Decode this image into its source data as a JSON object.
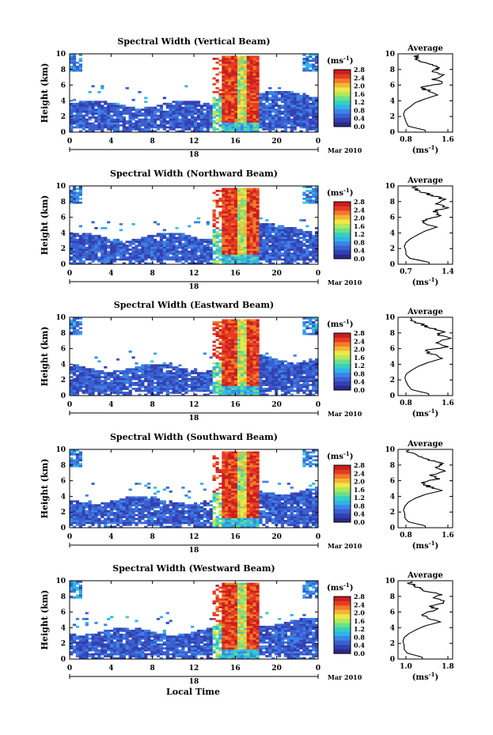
{
  "figure": {
    "xlabel_global": "Local Time",
    "cbar_unit": "(ms",
    "cbar_unit_exp": "-1",
    "cbar_unit_close": ")",
    "avg_title": "Average",
    "date_label": "Mar 2010",
    "day_label": "18",
    "colors": {
      "background": "#ffffff",
      "colormap": [
        "#2b2a8a",
        "#3340b0",
        "#3a5fd0",
        "#3b85e6",
        "#30b3e8",
        "#35d0c0",
        "#6be08a",
        "#b4e85a",
        "#eee847",
        "#f4b536",
        "#f27a2a",
        "#e83a22",
        "#c81e1e"
      ]
    }
  },
  "chart_data": [
    {
      "type": "heatmap",
      "title": "Spectral Width (Vertical Beam)",
      "ylabel": "Height (km)",
      "xlim": [
        0,
        24
      ],
      "ylim": [
        0,
        10
      ],
      "xticks": [
        "0",
        "4",
        "8",
        "12",
        "16",
        "20",
        "0"
      ],
      "yticks": [
        "0",
        "2",
        "4",
        "6",
        "8",
        "10"
      ],
      "colorbar": {
        "range": [
          0,
          2.8
        ],
        "ticks": [
          "0.0",
          "0.4",
          "0.8",
          "1.2",
          "1.6",
          "2.0",
          "2.4",
          "2.8"
        ]
      },
      "average_profile": {
        "xlim": [
          0.8,
          1.6
        ],
        "xticks": [
          "0.8",
          "1.6"
        ],
        "xlabel": "(ms-1)",
        "heights_km": [
          0.25,
          0.75,
          1.25,
          1.75,
          2.25,
          2.75,
          3.25,
          3.75,
          4.25,
          4.75,
          5.25,
          5.75,
          6.25,
          6.75,
          7.25,
          7.75,
          8.25,
          8.75,
          9.25,
          9.75
        ],
        "values": [
          1.2,
          0.95,
          0.92,
          0.9,
          0.88,
          0.9,
          0.98,
          1.05,
          1.2,
          1.38,
          1.25,
          1.1,
          1.45,
          1.32,
          1.5,
          1.3,
          1.42,
          1.2,
          1.1,
          1.05
        ]
      }
    },
    {
      "type": "heatmap",
      "title": "Spectral Width (Northward Beam)",
      "ylabel": "Height (km)",
      "xlim": [
        0,
        24
      ],
      "ylim": [
        0,
        10
      ],
      "xticks": [
        "0",
        "4",
        "8",
        "12",
        "16",
        "20",
        "0"
      ],
      "yticks": [
        "0",
        "2",
        "4",
        "6",
        "8",
        "10"
      ],
      "colorbar": {
        "range": [
          0,
          2.8
        ],
        "ticks": [
          "0.0",
          "0.4",
          "0.8",
          "1.2",
          "1.6",
          "2.0",
          "2.4",
          "2.8"
        ]
      },
      "average_profile": {
        "xlim": [
          0.7,
          1.4
        ],
        "xticks": [
          "0.7",
          "1.4"
        ],
        "xlabel": "(ms-1)",
        "heights_km": [
          0.25,
          0.75,
          1.25,
          1.75,
          2.25,
          2.75,
          3.25,
          3.75,
          4.25,
          4.75,
          5.25,
          5.75,
          6.25,
          6.75,
          7.25,
          7.75,
          8.25,
          8.75,
          9.25,
          9.75
        ],
        "values": [
          1.1,
          0.85,
          0.8,
          0.8,
          0.78,
          0.8,
          0.86,
          0.95,
          1.05,
          1.2,
          1.0,
          1.05,
          1.25,
          1.15,
          1.32,
          1.2,
          1.3,
          1.15,
          1.0,
          0.9
        ]
      }
    },
    {
      "type": "heatmap",
      "title": "Spectral Width (Eastward Beam)",
      "ylabel": "Height (km)",
      "xlim": [
        0,
        24
      ],
      "ylim": [
        0,
        10
      ],
      "xticks": [
        "0",
        "4",
        "8",
        "12",
        "16",
        "20",
        "0"
      ],
      "yticks": [
        "0",
        "2",
        "4",
        "6",
        "8",
        "10"
      ],
      "colorbar": {
        "range": [
          0,
          2.8
        ],
        "ticks": [
          "0.0",
          "0.4",
          "0.8",
          "1.2",
          "1.6",
          "2.0",
          "2.4",
          "2.8"
        ]
      },
      "average_profile": {
        "xlim": [
          0.8,
          1.6
        ],
        "xticks": [
          "0.8",
          "1.6"
        ],
        "xlabel": "(ms-1)",
        "heights_km": [
          0.25,
          0.75,
          1.25,
          1.75,
          2.25,
          2.75,
          3.25,
          3.75,
          4.25,
          4.75,
          5.25,
          5.75,
          6.25,
          6.75,
          7.25,
          7.75,
          8.25,
          8.75,
          9.25,
          9.75
        ],
        "values": [
          1.25,
          1.0,
          0.95,
          0.92,
          0.9,
          0.92,
          1.0,
          1.1,
          1.25,
          1.45,
          1.3,
          1.2,
          1.5,
          1.35,
          1.55,
          1.4,
          1.45,
          1.25,
          1.1,
          1.0
        ]
      }
    },
    {
      "type": "heatmap",
      "title": "Spectral Width (Southward Beam)",
      "ylabel": "Height (km)",
      "xlim": [
        0,
        24
      ],
      "ylim": [
        0,
        10
      ],
      "xticks": [
        "0",
        "4",
        "8",
        "12",
        "16",
        "20",
        "0"
      ],
      "yticks": [
        "0",
        "2",
        "4",
        "6",
        "8",
        "10"
      ],
      "colorbar": {
        "range": [
          0,
          2.8
        ],
        "ticks": [
          "0.0",
          "0.4",
          "0.8",
          "1.2",
          "1.6",
          "2.0",
          "2.4",
          "2.8"
        ]
      },
      "average_profile": {
        "xlim": [
          0.8,
          1.6
        ],
        "xticks": [
          "0.8",
          "1.6"
        ],
        "xlabel": "(ms-1)",
        "heights_km": [
          0.25,
          0.75,
          1.25,
          1.75,
          2.25,
          2.75,
          3.25,
          3.75,
          4.25,
          4.75,
          5.25,
          5.75,
          6.25,
          6.75,
          7.25,
          7.75,
          8.25,
          8.75,
          9.25,
          9.75
        ],
        "values": [
          1.2,
          0.95,
          0.9,
          0.9,
          0.88,
          0.9,
          0.95,
          1.05,
          1.2,
          1.45,
          1.25,
          1.15,
          1.4,
          1.3,
          1.5,
          1.35,
          1.45,
          1.2,
          1.05,
          0.95
        ]
      }
    },
    {
      "type": "heatmap",
      "title": "Spectral Width (Westward Beam)",
      "ylabel": "Height (km)",
      "xlim": [
        0,
        24
      ],
      "ylim": [
        0,
        10
      ],
      "xticks": [
        "0",
        "4",
        "8",
        "12",
        "16",
        "20",
        "0"
      ],
      "yticks": [
        "0",
        "2",
        "4",
        "6",
        "8",
        "10"
      ],
      "colorbar": {
        "range": [
          0,
          2.8
        ],
        "ticks": [
          "0.0",
          "0.4",
          "0.8",
          "1.2",
          "1.6",
          "2.0",
          "2.4",
          "2.8"
        ]
      },
      "average_profile": {
        "xlim": [
          0.9,
          1.8
        ],
        "xticks": [
          "1.0",
          "1.8"
        ],
        "xlabel": "(ms-1)",
        "heights_km": [
          0.25,
          0.75,
          1.25,
          1.75,
          2.25,
          2.75,
          3.25,
          3.75,
          4.25,
          4.75,
          5.25,
          5.75,
          6.25,
          6.75,
          7.25,
          7.75,
          8.25,
          8.75,
          9.25,
          9.75
        ],
        "values": [
          1.3,
          1.05,
          1.0,
          1.0,
          0.98,
          1.0,
          1.08,
          1.2,
          1.35,
          1.6,
          1.4,
          1.3,
          1.55,
          1.45,
          1.7,
          1.5,
          1.6,
          1.35,
          1.2,
          1.1
        ]
      }
    }
  ]
}
